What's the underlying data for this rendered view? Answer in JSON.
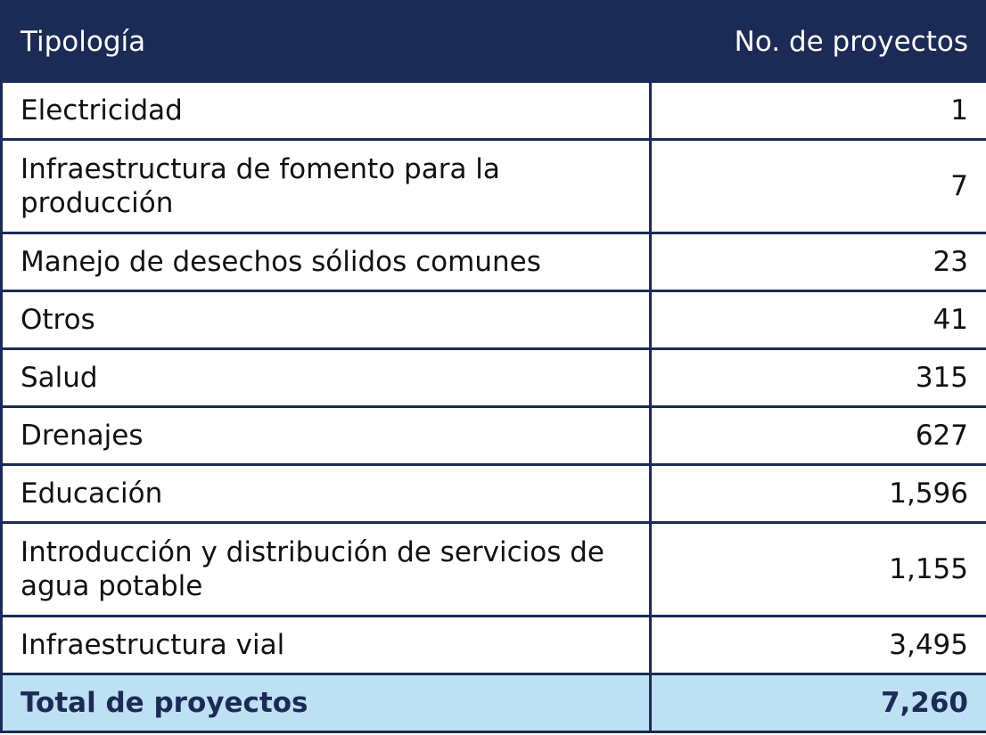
{
  "header": {
    "col1": "Tipología",
    "col2": "No. de proyectos"
  },
  "rows": [
    {
      "tipologia": "Electricidad",
      "proyectos": "1"
    },
    {
      "tipologia": "Infraestructura de fomento para la producción",
      "proyectos": "7"
    },
    {
      "tipologia": "Manejo de desechos sólidos comunes",
      "proyectos": "23"
    },
    {
      "tipologia": "Otros",
      "proyectos": "41"
    },
    {
      "tipologia": "Salud",
      "proyectos": "315"
    },
    {
      "tipologia": "Drenajes",
      "proyectos": "627"
    },
    {
      "tipologia": "Educación",
      "proyectos": "1,596"
    },
    {
      "tipologia": "Introducción y distribución de servicios de agua potable",
      "proyectos": "1,155"
    },
    {
      "tipologia": "Infraestructura vial",
      "proyectos": "3,495"
    }
  ],
  "total": {
    "label": "Total de proyectos",
    "value": "7,260"
  },
  "colors": {
    "header_bg": "#1c2b55",
    "total_bg": "#bde0f2"
  }
}
